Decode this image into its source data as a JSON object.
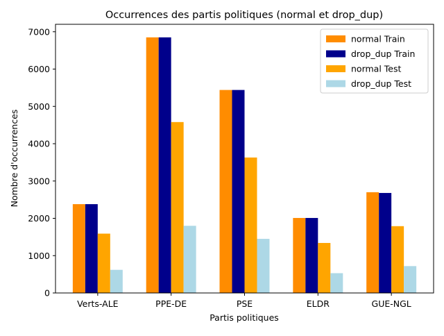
{
  "chart_data": {
    "type": "bar",
    "title": "Occurrences des partis politiques (normal et drop_dup)",
    "xlabel": "Partis politiques",
    "ylabel": "Nombre d'occurrences",
    "categories": [
      "Verts-ALE",
      "PPE-DE",
      "PSE",
      "ELDR",
      "GUE-NGL"
    ],
    "ylim": [
      0,
      7200
    ],
    "yticks": [
      0,
      1000,
      2000,
      3000,
      4000,
      5000,
      6000,
      7000
    ],
    "legend_position": "top-right",
    "grid": false,
    "series": [
      {
        "name": "normal Train",
        "color": "#ff8c00",
        "values": [
          2380,
          6850,
          5440,
          2010,
          2700
        ]
      },
      {
        "name": "drop_dup Train",
        "color": "#00008b",
        "values": [
          2380,
          6850,
          5440,
          2010,
          2680
        ]
      },
      {
        "name": "normal Test",
        "color": "#ffa500",
        "values": [
          1590,
          4580,
          3630,
          1340,
          1790
        ]
      },
      {
        "name": "drop_dup Test",
        "color": "#add8e6",
        "values": [
          620,
          1800,
          1450,
          530,
          720
        ]
      }
    ]
  }
}
